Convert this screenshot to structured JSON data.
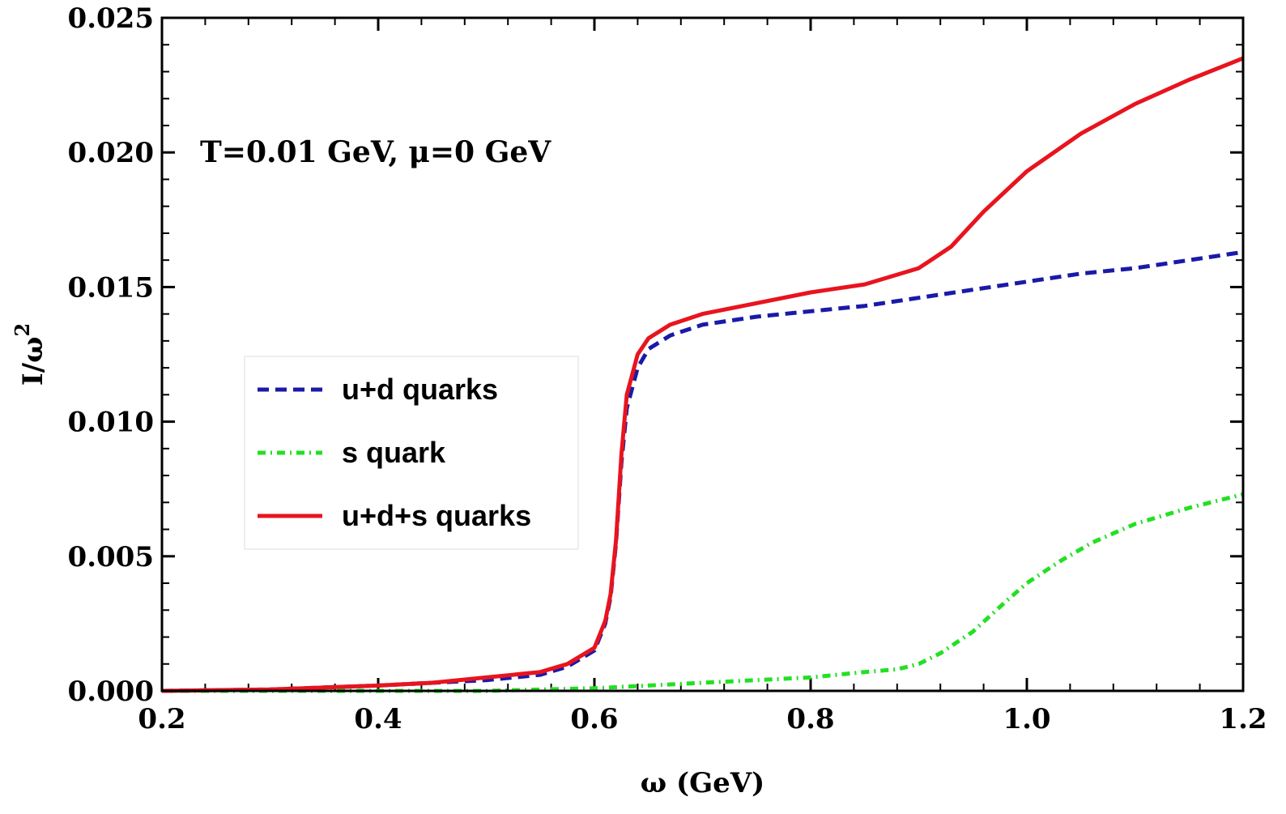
{
  "chart_data": {
    "type": "line",
    "xlabel": "ω (GeV)",
    "ylabel": "I/ω²",
    "ylabel_base": "I/ω",
    "ylabel_sup": "2",
    "annotation": "T=0.01 GeV, μ=0 GeV",
    "xlim": [
      0.2,
      1.2
    ],
    "ylim": [
      0.0,
      0.025
    ],
    "x_ticks": [
      "0.2",
      "0.4",
      "0.6",
      "0.8",
      "1.0",
      "1.2"
    ],
    "y_ticks": [
      "0.000",
      "0.005",
      "0.010",
      "0.015",
      "0.020",
      "0.025"
    ],
    "grid": false,
    "legend_position": "center-left",
    "series": [
      {
        "name": "u+d quarks",
        "color": "#1a1aa8",
        "style": "dashed",
        "x": [
          0.2,
          0.3,
          0.4,
          0.45,
          0.5,
          0.55,
          0.575,
          0.6,
          0.61,
          0.615,
          0.62,
          0.625,
          0.63,
          0.64,
          0.65,
          0.67,
          0.7,
          0.75,
          0.8,
          0.85,
          0.9,
          0.95,
          1.0,
          1.05,
          1.1,
          1.15,
          1.2
        ],
        "y": [
          0.0,
          5e-05,
          0.0002,
          0.0003,
          0.0004,
          0.0006,
          0.0009,
          0.0015,
          0.0025,
          0.0035,
          0.0055,
          0.0085,
          0.0105,
          0.012,
          0.0127,
          0.0132,
          0.0136,
          0.0139,
          0.0141,
          0.0143,
          0.0146,
          0.0149,
          0.0152,
          0.0155,
          0.0157,
          0.016,
          0.0163
        ]
      },
      {
        "name": "s quark",
        "color": "#22e022",
        "style": "dash-dot",
        "x": [
          0.2,
          0.4,
          0.5,
          0.55,
          0.6,
          0.65,
          0.7,
          0.75,
          0.8,
          0.85,
          0.88,
          0.9,
          0.92,
          0.95,
          0.98,
          1.0,
          1.03,
          1.06,
          1.1,
          1.15,
          1.2
        ],
        "y": [
          0.0,
          0.0,
          0.0,
          5e-05,
          0.0001,
          0.0002,
          0.0003,
          0.0004,
          0.0005,
          0.0007,
          0.0008,
          0.001,
          0.0014,
          0.0022,
          0.0033,
          0.004,
          0.0048,
          0.0055,
          0.0062,
          0.0068,
          0.0073
        ]
      },
      {
        "name": "u+d+s quarks",
        "color": "#e8141e",
        "style": "solid",
        "x": [
          0.2,
          0.3,
          0.4,
          0.45,
          0.5,
          0.55,
          0.575,
          0.6,
          0.61,
          0.615,
          0.62,
          0.625,
          0.63,
          0.64,
          0.65,
          0.67,
          0.7,
          0.75,
          0.8,
          0.85,
          0.9,
          0.93,
          0.96,
          1.0,
          1.05,
          1.1,
          1.15,
          1.2
        ],
        "y": [
          0.0,
          5e-05,
          0.0002,
          0.0003,
          0.0005,
          0.0007,
          0.001,
          0.0016,
          0.0026,
          0.0036,
          0.0056,
          0.0088,
          0.011,
          0.0125,
          0.0131,
          0.0136,
          0.014,
          0.0144,
          0.0148,
          0.0151,
          0.0157,
          0.0165,
          0.0178,
          0.0193,
          0.0207,
          0.0218,
          0.0227,
          0.0235
        ]
      }
    ]
  }
}
